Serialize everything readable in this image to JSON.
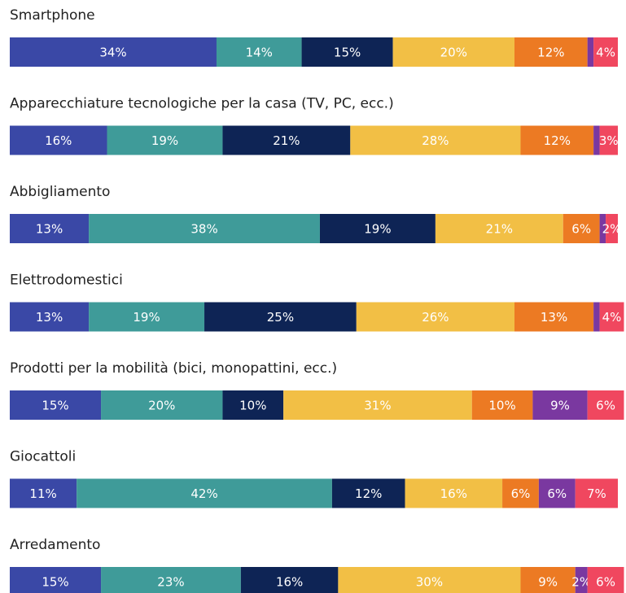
{
  "chart_data": {
    "type": "stacked-bar-horizontal",
    "categories": [
      "Smartphone",
      "Apparecchiature tecnologiche per la casa (TV, PC, ecc.)",
      "Abbigliamento",
      "Elettrodomestici",
      "Prodotti per la mobilità (bici, monopattini, ecc.)",
      "Giocattoli",
      "Arredamento"
    ],
    "series": [
      {
        "color": "#3a48a6",
        "values": [
          34,
          16,
          13,
          13,
          15,
          11,
          15
        ],
        "value_labels": [
          "34%",
          "16%",
          "13%",
          "13%",
          "15%",
          "11%",
          "15%"
        ]
      },
      {
        "color": "#3f9b99",
        "values": [
          14,
          19,
          38,
          19,
          20,
          42,
          23
        ],
        "value_labels": [
          "14%",
          "19%",
          "38%",
          "19%",
          "20%",
          "42%",
          "23%"
        ]
      },
      {
        "color": "#0e2455",
        "values": [
          15,
          21,
          19,
          25,
          10,
          12,
          16
        ],
        "value_labels": [
          "15%",
          "21%",
          "19%",
          "25%",
          "10%",
          "12%",
          "16%"
        ]
      },
      {
        "color": "#f2bf45",
        "values": [
          20,
          28,
          21,
          26,
          31,
          16,
          30
        ],
        "value_labels": [
          "20%",
          "28%",
          "21%",
          "26%",
          "31%",
          "16%",
          "30%"
        ]
      },
      {
        "color": "#ec7a23",
        "values": [
          12,
          12,
          6,
          13,
          10,
          6,
          9
        ],
        "value_labels": [
          "12%",
          "12%",
          "6%",
          "13%",
          "10%",
          "6%",
          "9%"
        ]
      },
      {
        "color": "#7a38a0",
        "values": [
          1,
          1,
          1,
          1,
          9,
          6,
          2
        ],
        "value_labels": [
          null,
          null,
          null,
          null,
          "9%",
          "6%",
          "2%"
        ]
      },
      {
        "color": "#f0475f",
        "values": [
          4,
          3,
          2,
          4,
          6,
          7,
          6
        ],
        "value_labels": [
          "4%",
          "3%",
          "2%",
          "4%",
          "6%",
          "7%",
          "6%"
        ]
      }
    ]
  }
}
